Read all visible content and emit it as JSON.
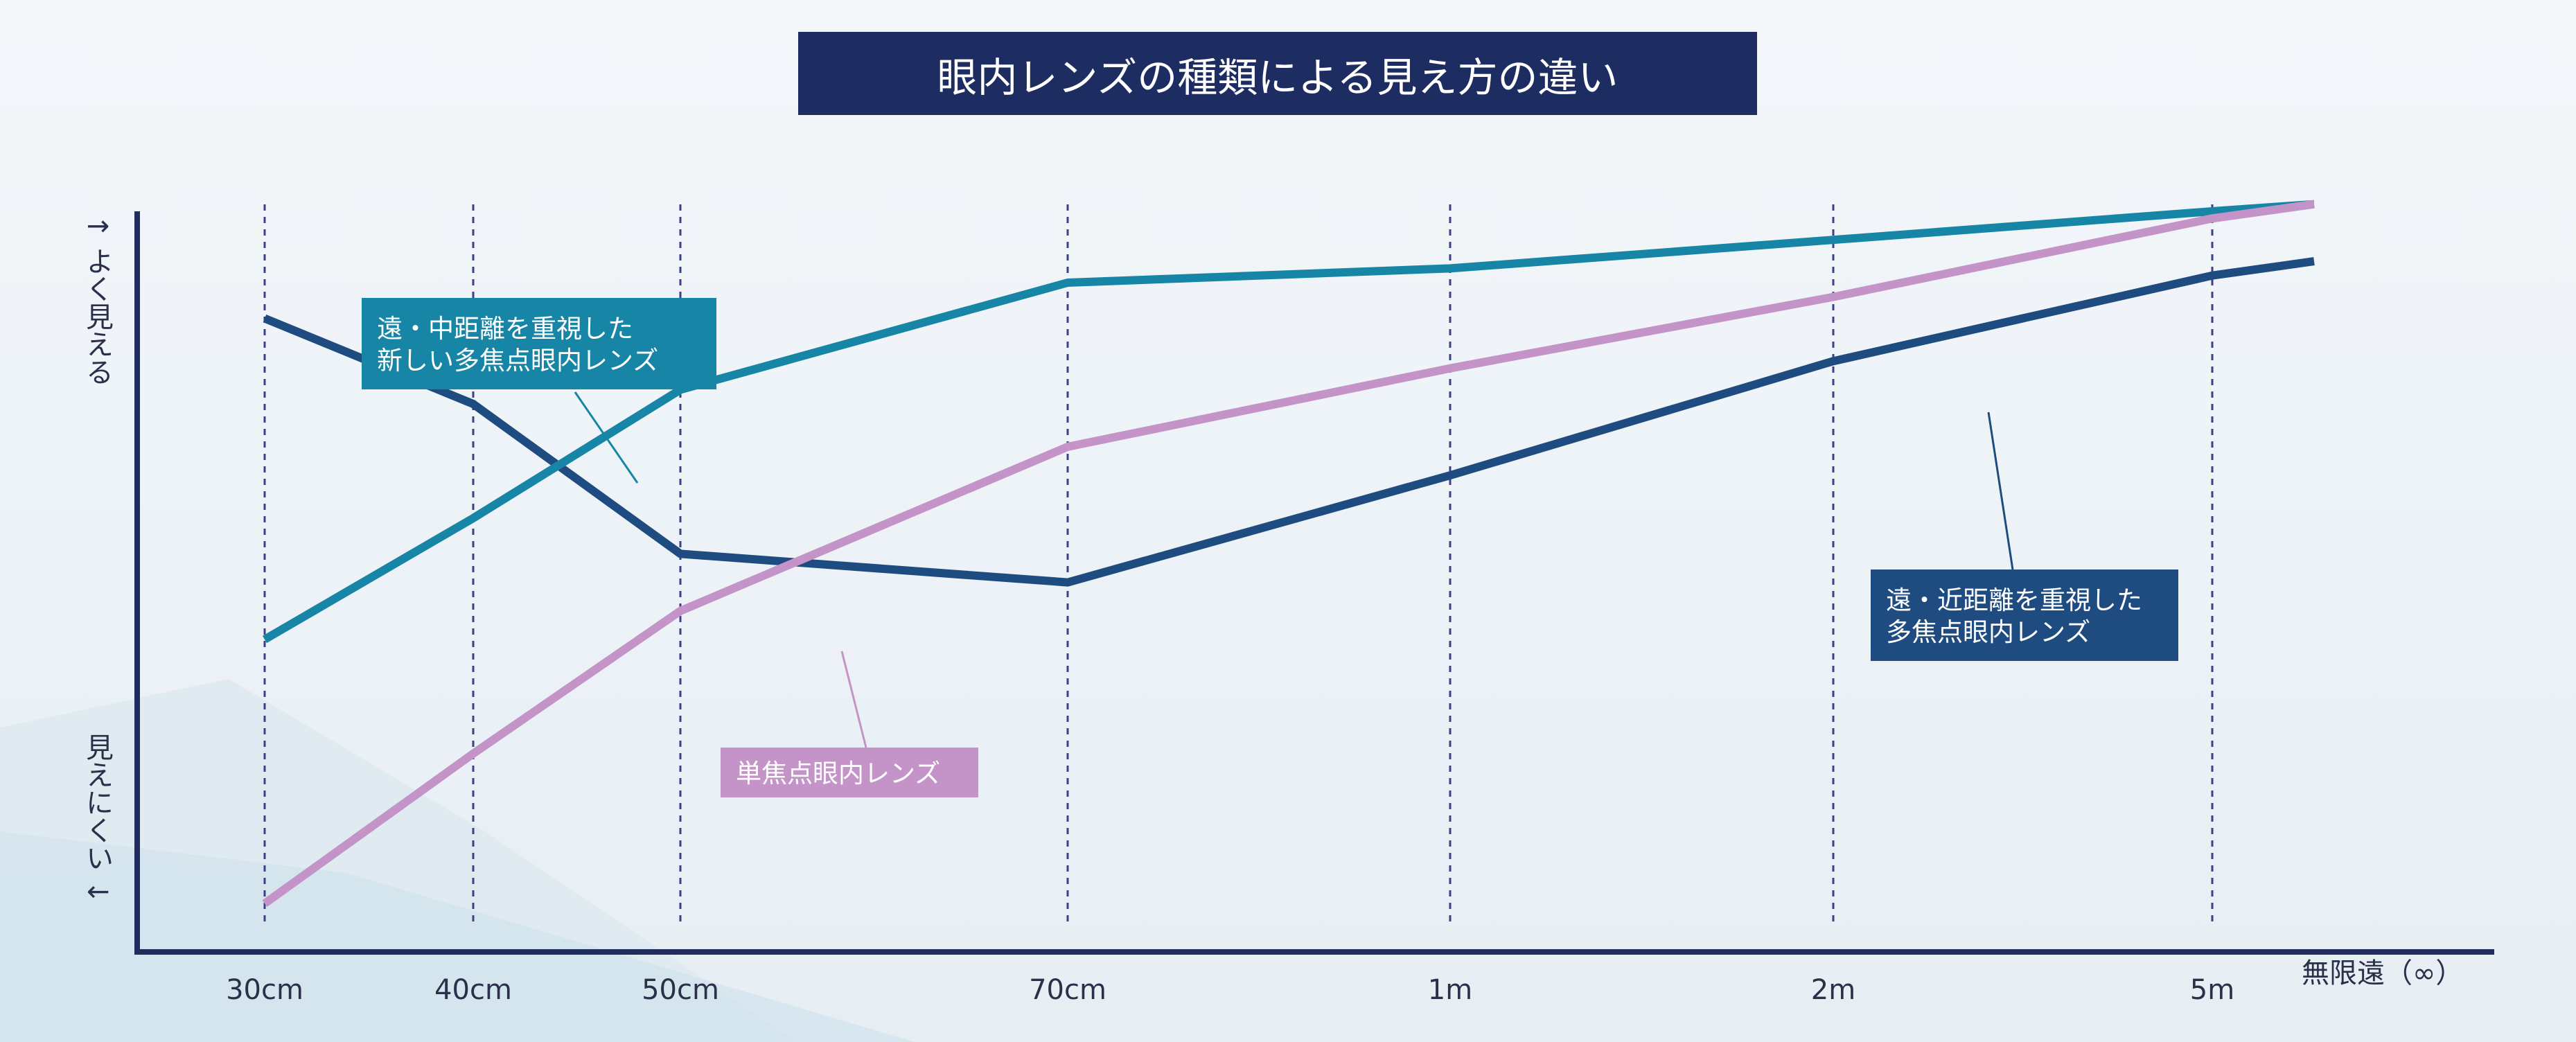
{
  "chart_data": {
    "type": "line",
    "title": "眼内レンズの種類による見え方の違い",
    "y_axis": {
      "top_label": "↑ よく見える",
      "bottom_label": "見えにくい ↓",
      "ticks": "none"
    },
    "categories": [
      "30cm",
      "40cm",
      "50cm",
      "70cm",
      "1m",
      "2m",
      "5m"
    ],
    "x_end_label": "無限遠（∞）",
    "ylim": [
      0,
      100
    ],
    "grid": "vertical dashed lines at each category",
    "series": [
      {
        "name": "遠・中距離を重視した新しい多焦点眼内レンズ",
        "label_lines": [
          "遠・中距離を重視した",
          "新しい多焦点眼内レンズ"
        ],
        "color": "#1786a6",
        "values": [
          40,
          57,
          75,
          90,
          92,
          96,
          100
        ],
        "end_value": 101
      },
      {
        "name": "遠・近距離を重視した多焦点眼内レンズ",
        "label_lines": [
          "遠・近距離を重視した",
          "多焦点眼内レンズ"
        ],
        "color": "#1e4c80",
        "values": [
          85,
          73,
          52,
          48,
          63,
          79,
          91
        ],
        "end_value": 93
      },
      {
        "name": "単焦点眼内レンズ",
        "label_lines": [
          "単焦点眼内レンズ"
        ],
        "color": "#c494c8",
        "values": [
          3,
          24,
          44,
          67,
          78,
          88,
          99
        ],
        "end_value": 101
      }
    ],
    "colors": {
      "title_bg": "#1d2d62",
      "title_text": "#ffffff",
      "axis": "#1e2d5e",
      "grid": "#3c3f8c",
      "label_text": "#2a2f4a"
    }
  }
}
